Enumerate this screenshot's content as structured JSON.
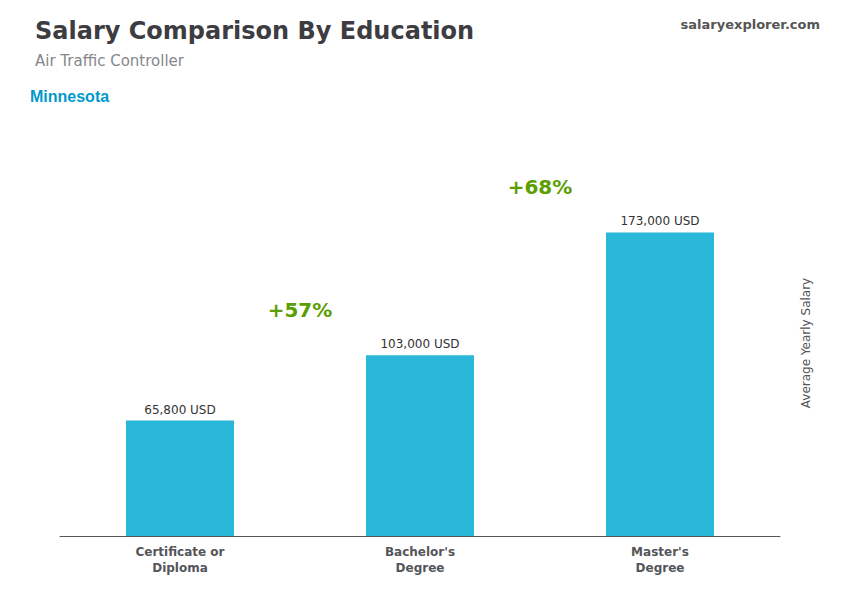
{
  "chart_data": {
    "type": "bar",
    "title": "Salary Comparison By Education",
    "subtitle": "Air Traffic Controller",
    "annotations": [
      "Minnesota",
      "salaryexplorer.com",
      "+57%",
      "+68%"
    ],
    "ylabel": "Average Yearly Salary",
    "categories": [
      "Certificate or\nDiploma",
      "Bachelor's\nDegree",
      "Master's\nDegree"
    ],
    "values": [
      65800,
      103000,
      173000
    ],
    "value_labels": [
      "65,800 USD",
      "103,000 USD",
      "173,000 USD"
    ],
    "data_labels": true,
    "color": "#29b8d8",
    "ylim": [
      0,
      220000
    ],
    "tick_labels": false,
    "grid": false
  }
}
